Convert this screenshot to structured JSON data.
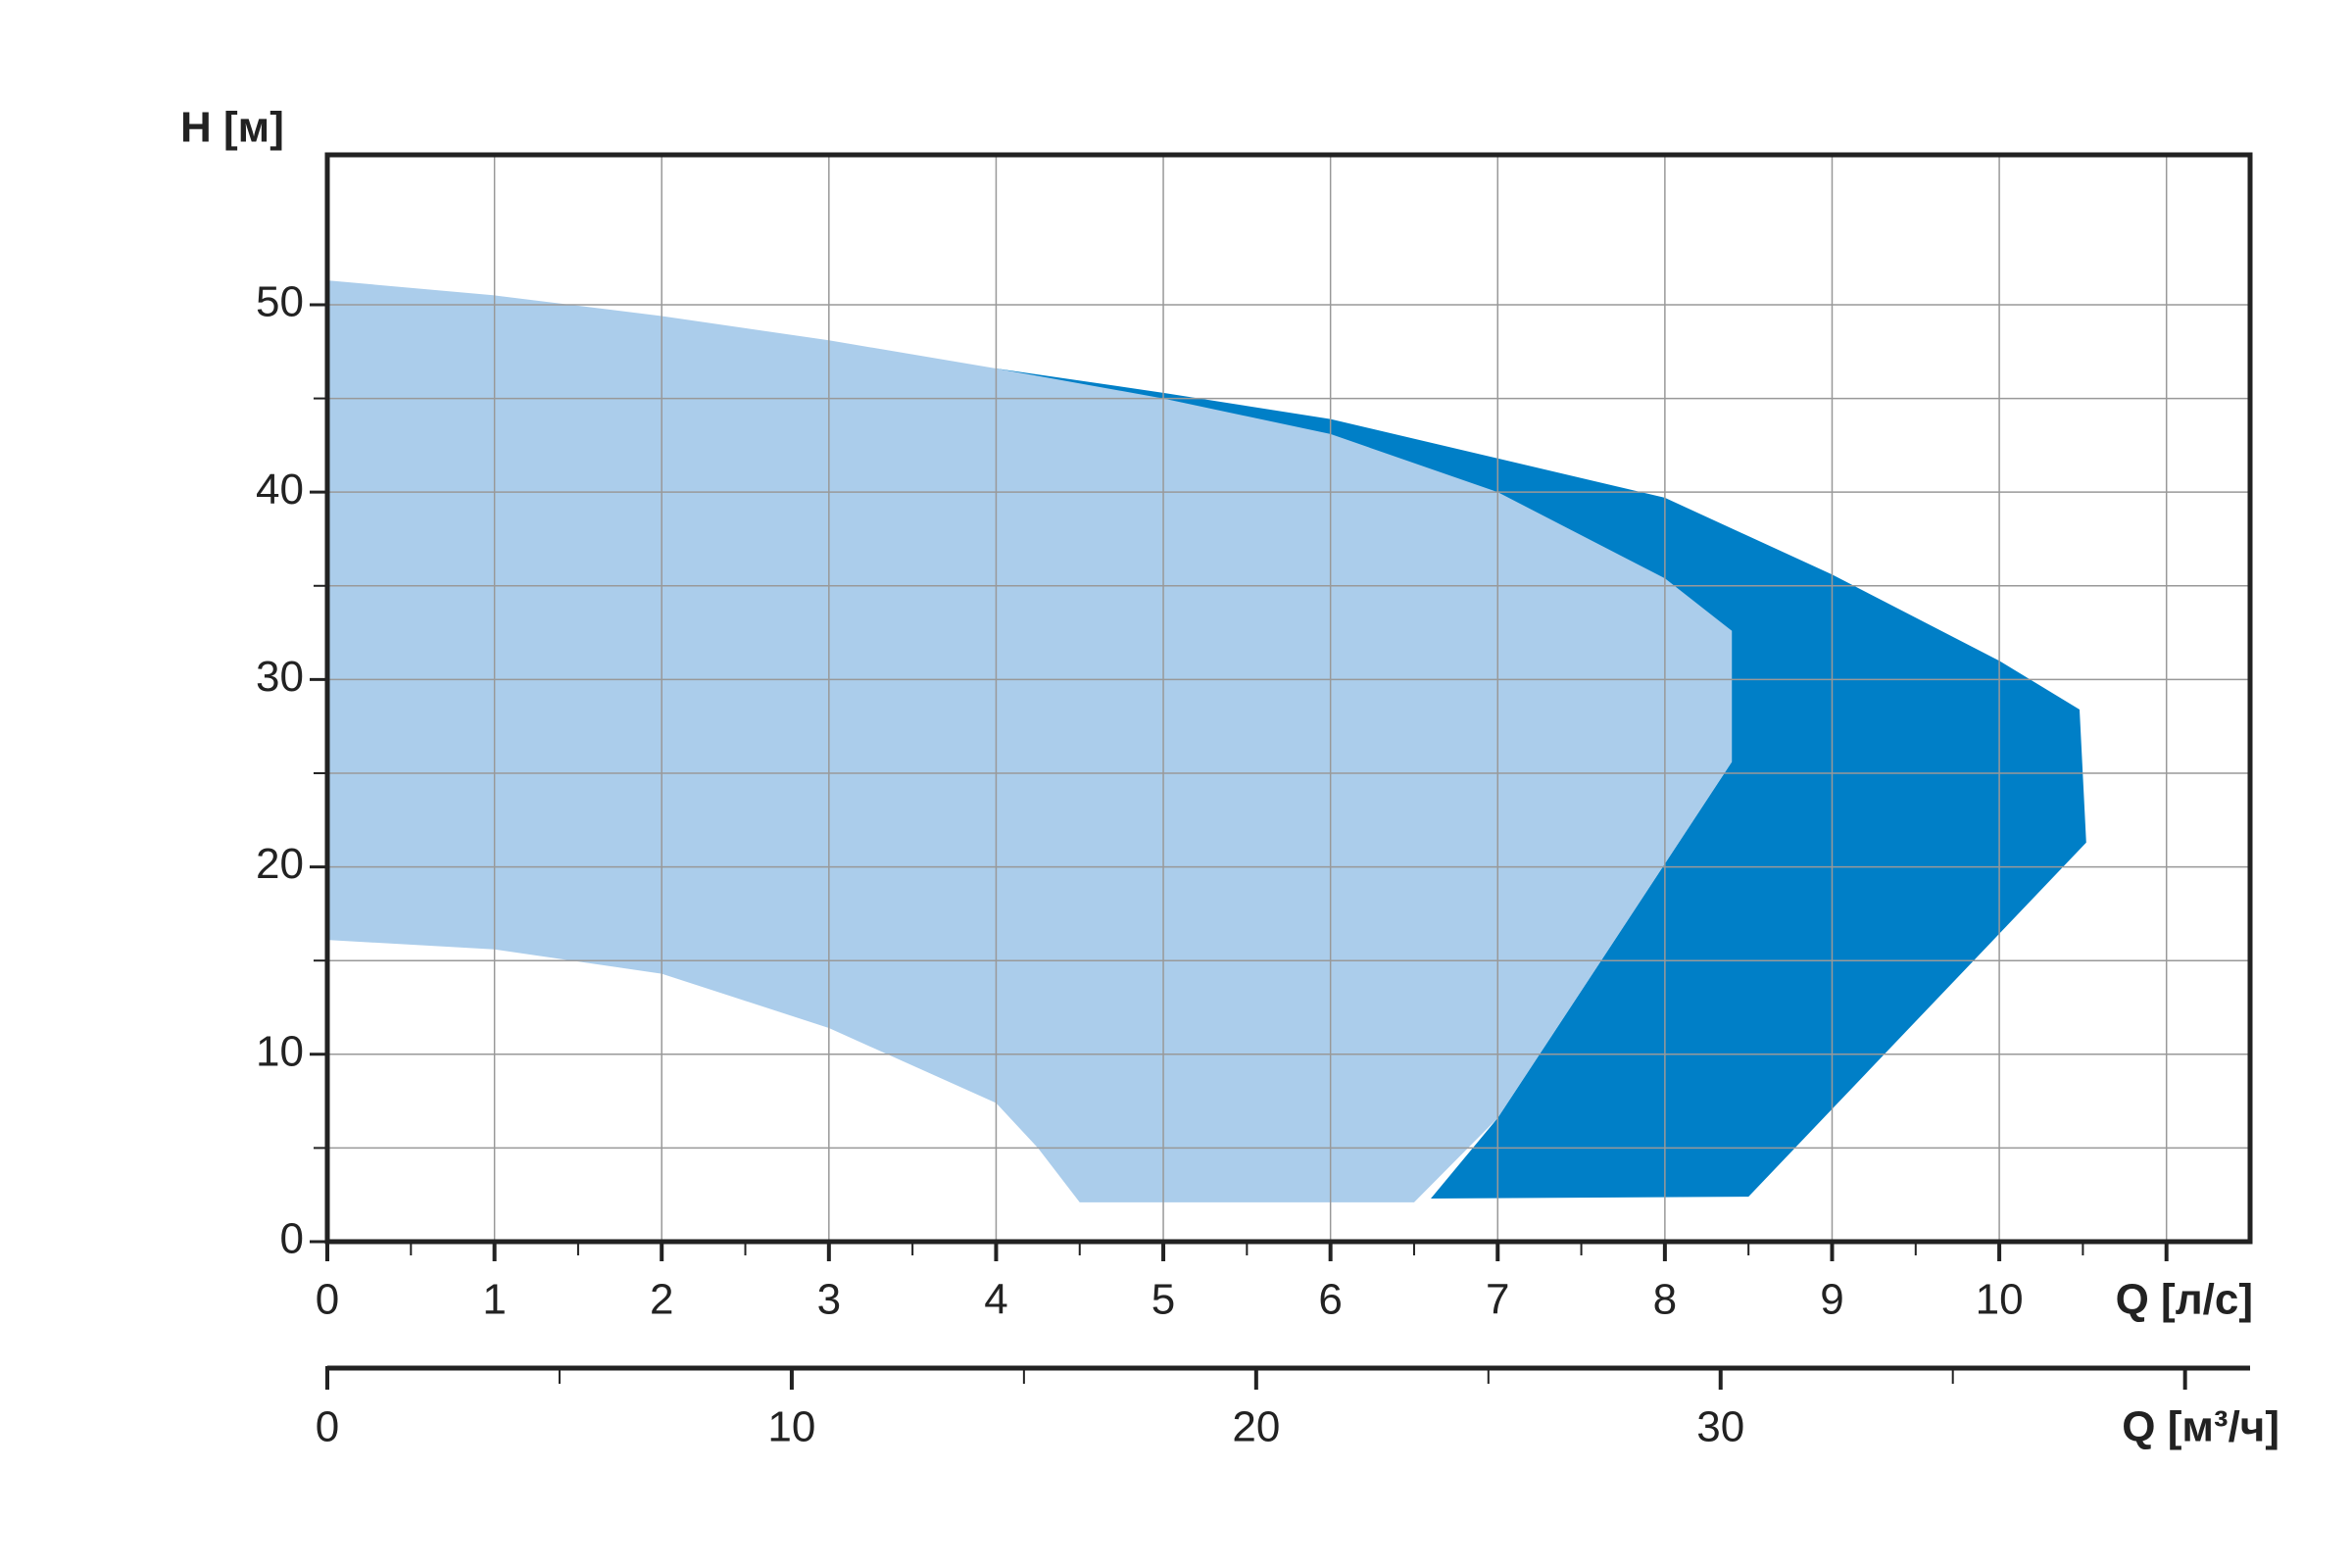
{
  "chart_data": {
    "type": "area",
    "y_label": "H [м]",
    "x_label": "Q [л/с]",
    "x2_label": "Q [м³/ч]",
    "xlim": [
      0,
      11.5
    ],
    "xticks": [
      0,
      1,
      2,
      3,
      4,
      5,
      6,
      7,
      8,
      9,
      10
    ],
    "xminorticks": [
      0.5,
      1.5,
      2.5,
      3.5,
      4.5,
      5.5,
      6.5,
      7.5,
      8.5,
      9.5,
      10.5,
      11
    ],
    "ylim": [
      0,
      58
    ],
    "yticks": [
      0,
      10,
      20,
      30,
      40,
      50
    ],
    "yminorticks": [
      5,
      15,
      25,
      35,
      45
    ],
    "x2lim": [
      0,
      41.4
    ],
    "x2ticks": [
      0,
      10,
      20,
      30
    ],
    "x2minorticks": [
      5,
      15,
      25,
      35,
      40
    ],
    "grid": true,
    "series": [
      {
        "color": "#007fc7",
        "x": [
          4,
          5,
          6,
          7,
          8,
          9,
          10,
          10.48,
          10.52,
          8.5,
          6.6,
          7,
          8.4,
          8.4
        ],
        "values": [
          46.6,
          45.3,
          43.9,
          41.8,
          39.7,
          35.6,
          31,
          28.4,
          21.3,
          2.4,
          2.3,
          6.6,
          25.6,
          32.6
        ]
      },
      {
        "color": "#abcdeb",
        "x": [
          0,
          1,
          2,
          3,
          4,
          5,
          6,
          7,
          8,
          8.4,
          8.4,
          7,
          6.5,
          4.5,
          4.25,
          4,
          3,
          2,
          1,
          0
        ],
        "values": [
          51.3,
          50.5,
          49.4,
          48.1,
          46.6,
          45,
          43.1,
          40,
          35.4,
          32.6,
          25.6,
          6.6,
          2.1,
          2.1,
          5,
          7.4,
          11.4,
          14.3,
          15.6,
          16.1
        ]
      }
    ]
  }
}
